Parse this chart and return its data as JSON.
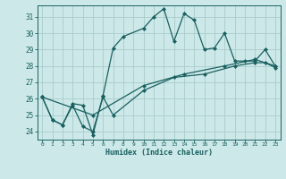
{
  "title": "",
  "xlabel": "Humidex (Indice chaleur)",
  "bg_color": "#cce8e8",
  "grid_color": "#aacccc",
  "line_color": "#1a6060",
  "xlim": [
    -0.5,
    23.5
  ],
  "ylim": [
    23.5,
    31.7
  ],
  "yticks": [
    24,
    25,
    26,
    27,
    28,
    29,
    30,
    31
  ],
  "xticks": [
    0,
    1,
    2,
    3,
    4,
    5,
    6,
    7,
    8,
    9,
    10,
    11,
    12,
    13,
    14,
    15,
    16,
    17,
    18,
    19,
    20,
    21,
    22,
    23
  ],
  "line1_x": [
    0,
    1,
    2,
    3,
    4,
    5,
    6,
    7,
    8,
    10,
    11,
    12,
    13,
    14,
    15,
    16,
    17,
    18,
    19,
    20,
    21,
    22,
    23
  ],
  "line1_y": [
    26.1,
    24.7,
    24.4,
    25.7,
    25.6,
    23.8,
    26.2,
    29.1,
    29.8,
    30.3,
    31.0,
    31.5,
    29.5,
    31.2,
    30.8,
    29.0,
    29.1,
    30.0,
    28.3,
    28.3,
    28.3,
    29.0,
    28.0
  ],
  "line2_x": [
    0,
    1,
    2,
    3,
    4,
    5,
    6,
    7,
    10,
    13,
    16,
    19,
    21,
    22,
    23
  ],
  "line2_y": [
    26.1,
    24.7,
    24.4,
    25.6,
    24.3,
    24.0,
    26.1,
    25.0,
    26.5,
    27.3,
    27.5,
    28.0,
    28.2,
    28.2,
    27.9
  ],
  "line3_x": [
    0,
    5,
    10,
    14,
    18,
    21,
    23
  ],
  "line3_y": [
    26.1,
    25.0,
    26.8,
    27.5,
    28.0,
    28.4,
    28.0
  ],
  "marker": "D",
  "markersize": 2.0,
  "linewidth": 0.9
}
